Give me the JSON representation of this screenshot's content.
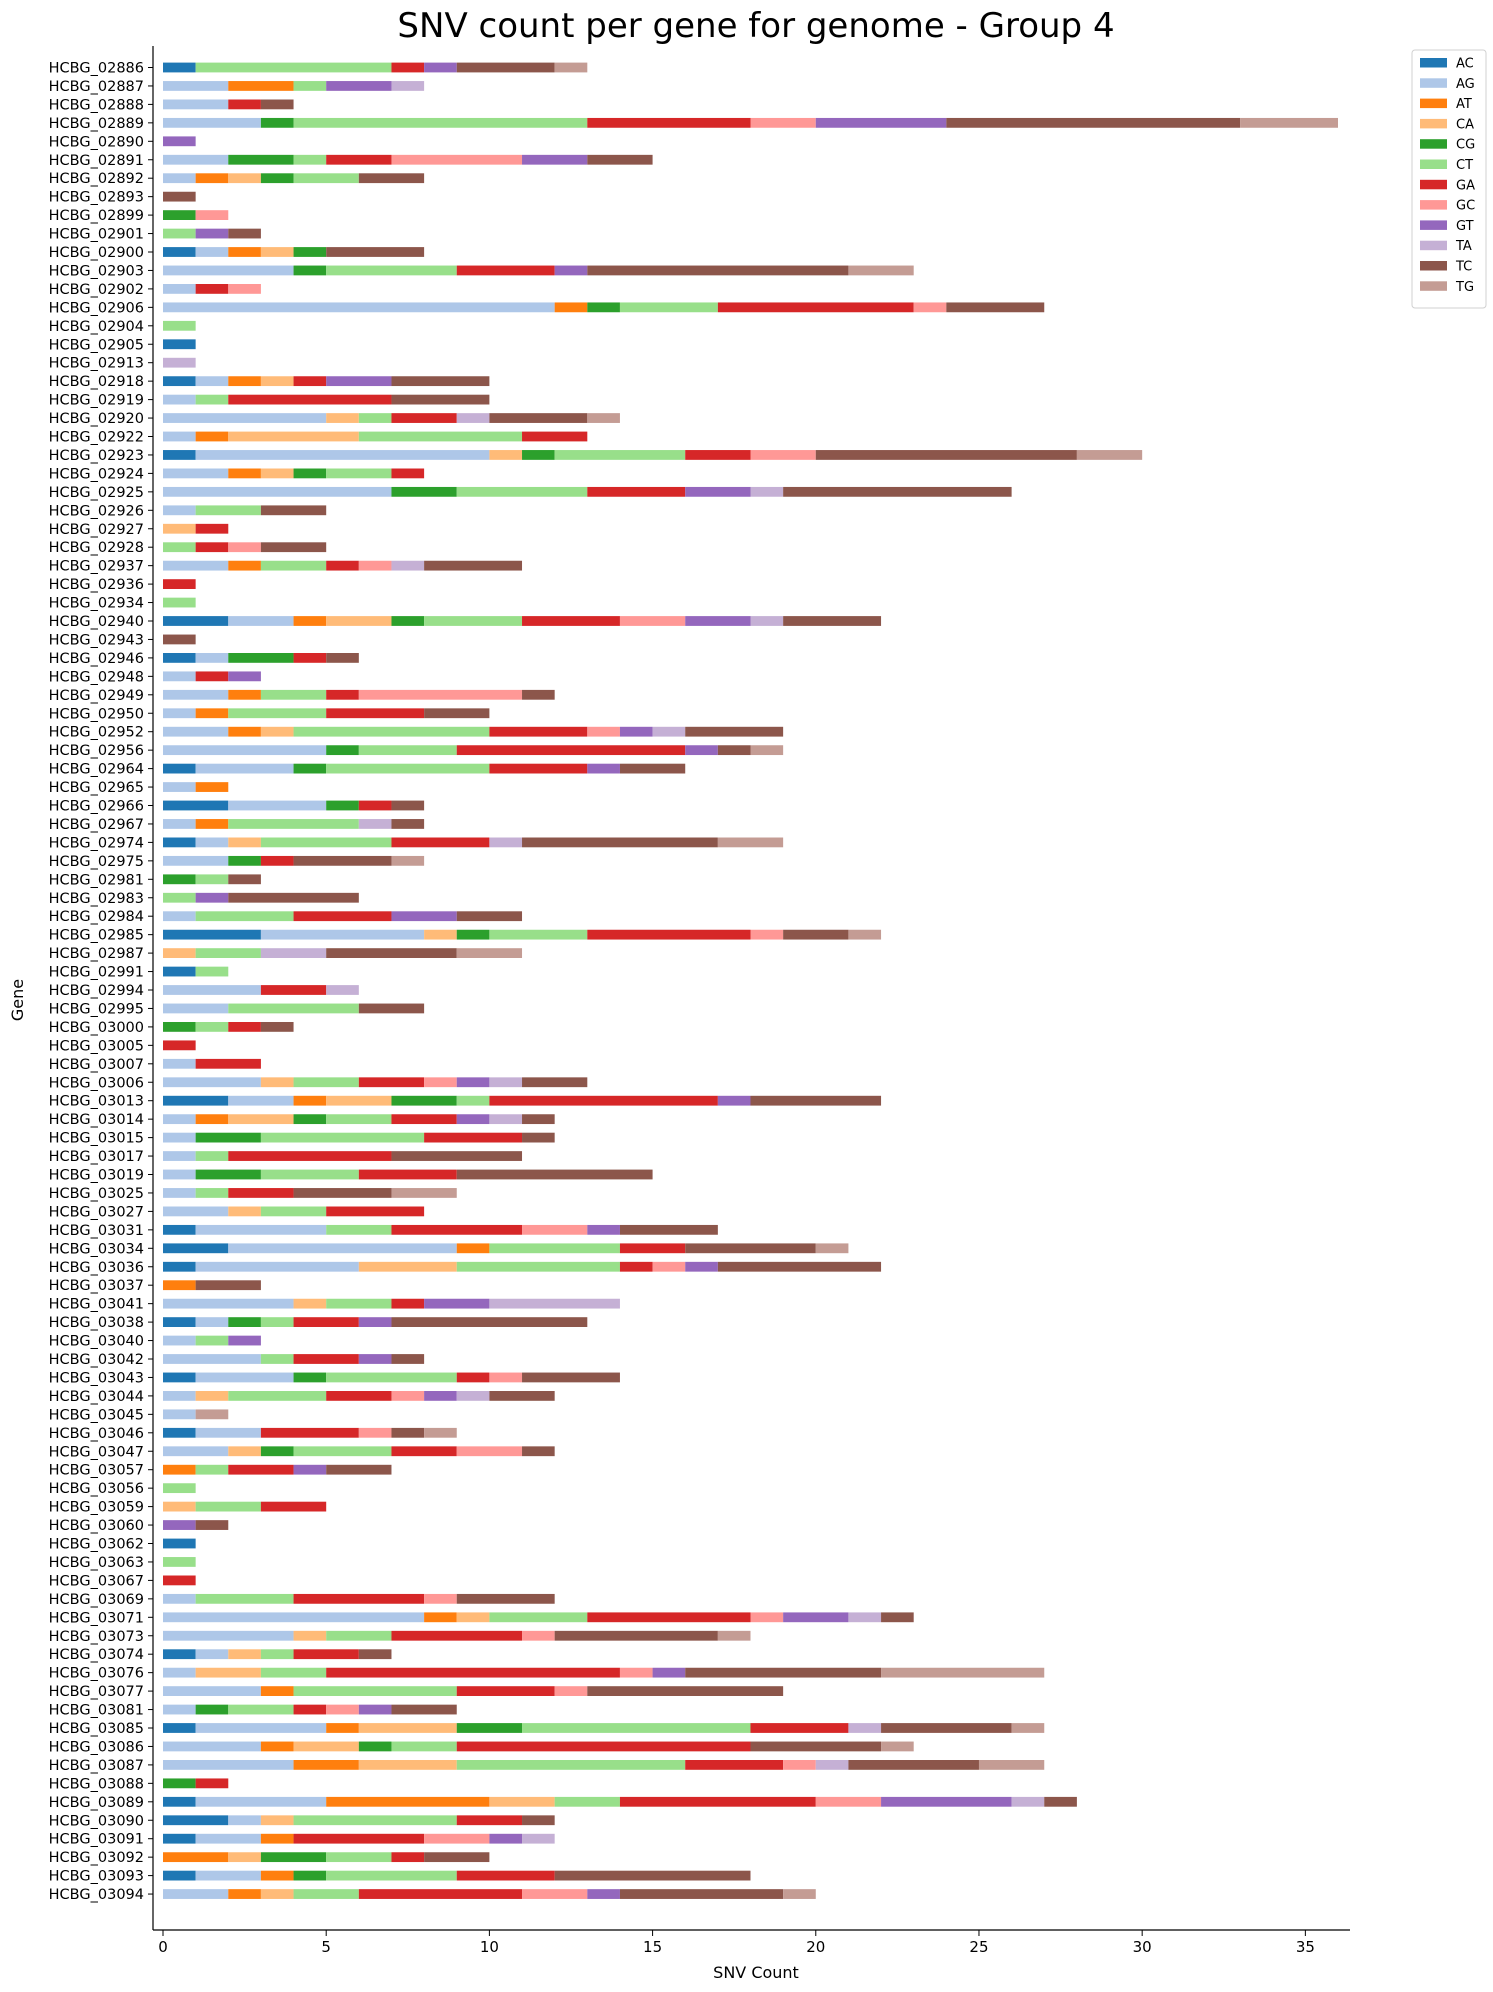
{
  "chart_data": {
    "type": "bar",
    "orientation": "horizontal",
    "stacked": true,
    "title": "SNV count per gene for genome - Group 4",
    "xlabel": "SNV Count",
    "ylabel": "Gene",
    "xlim": [
      0,
      36
    ],
    "xticks": [
      0,
      5,
      10,
      15,
      20,
      25,
      30,
      35
    ],
    "grid": false,
    "legend_position": "upper-right-outside",
    "series_names": [
      "AC",
      "AG",
      "AT",
      "CA",
      "CG",
      "CT",
      "GA",
      "GC",
      "GT",
      "TA",
      "TC",
      "TG"
    ],
    "colors": {
      "AC": "#1f77b4",
      "AG": "#aec7e8",
      "AT": "#ff7f0e",
      "CA": "#ffbb78",
      "CG": "#2ca02c",
      "CT": "#98df8a",
      "GA": "#d62728",
      "GC": "#ff9896",
      "GT": "#9467bd",
      "TA": "#c5b0d5",
      "TC": "#8c564b",
      "TG": "#c49c94"
    },
    "genes": [
      {
        "name": "HCBG_02886",
        "AC": 1,
        "CT": 6,
        "GA": 1,
        "GT": 1,
        "TC": 3,
        "TG": 1
      },
      {
        "name": "HCBG_02887",
        "AG": 2,
        "AT": 2,
        "CT": 1,
        "GT": 2,
        "TA": 1
      },
      {
        "name": "HCBG_02888",
        "AG": 2,
        "GA": 1,
        "TC": 1
      },
      {
        "name": "HCBG_02889",
        "AG": 3,
        "CG": 1,
        "CT": 9,
        "GA": 5,
        "GC": 2,
        "GT": 4,
        "TC": 9,
        "TG": 3
      },
      {
        "name": "HCBG_02890",
        "GT": 1
      },
      {
        "name": "HCBG_02891",
        "AG": 2,
        "CG": 2,
        "CT": 1,
        "GA": 2,
        "GC": 4,
        "GT": 2,
        "TC": 2
      },
      {
        "name": "HCBG_02892",
        "AG": 1,
        "AT": 1,
        "CA": 1,
        "CG": 1,
        "CT": 2,
        "TC": 2
      },
      {
        "name": "HCBG_02893",
        "TC": 1
      },
      {
        "name": "HCBG_02899",
        "CG": 1,
        "GC": 1
      },
      {
        "name": "HCBG_02901",
        "CT": 1,
        "GT": 1,
        "TC": 1
      },
      {
        "name": "HCBG_02900",
        "AC": 1,
        "AG": 1,
        "AT": 1,
        "CA": 1,
        "CG": 1,
        "TC": 3
      },
      {
        "name": "HCBG_02903",
        "AG": 4,
        "CG": 1,
        "CT": 4,
        "GA": 3,
        "GT": 1,
        "TC": 8,
        "TG": 2
      },
      {
        "name": "HCBG_02902",
        "AG": 1,
        "GA": 1,
        "GC": 1
      },
      {
        "name": "HCBG_02906",
        "AG": 12,
        "AT": 1,
        "CG": 1,
        "CT": 3,
        "GA": 6,
        "GC": 1,
        "TC": 3
      },
      {
        "name": "HCBG_02904",
        "CT": 1
      },
      {
        "name": "HCBG_02905",
        "AC": 1
      },
      {
        "name": "HCBG_02913",
        "TA": 1
      },
      {
        "name": "HCBG_02918",
        "AC": 1,
        "AG": 1,
        "AT": 1,
        "CA": 1,
        "GA": 1,
        "GT": 2,
        "TC": 3
      },
      {
        "name": "HCBG_02919",
        "AG": 1,
        "CT": 1,
        "GA": 5,
        "TC": 3
      },
      {
        "name": "HCBG_02920",
        "AG": 5,
        "CA": 1,
        "CT": 1,
        "GA": 2,
        "TA": 1,
        "TC": 3,
        "TG": 1
      },
      {
        "name": "HCBG_02922",
        "AG": 1,
        "AT": 1,
        "CA": 4,
        "CT": 5,
        "GA": 2
      },
      {
        "name": "HCBG_02923",
        "AC": 1,
        "AG": 9,
        "CA": 1,
        "CG": 1,
        "CT": 4,
        "GA": 2,
        "GC": 2,
        "TC": 8,
        "TG": 2
      },
      {
        "name": "HCBG_02924",
        "AG": 2,
        "AT": 1,
        "CA": 1,
        "CG": 1,
        "CT": 2,
        "GA": 1
      },
      {
        "name": "HCBG_02925",
        "AG": 7,
        "CG": 2,
        "CT": 4,
        "GA": 3,
        "GT": 2,
        "TA": 1,
        "TC": 7
      },
      {
        "name": "HCBG_02926",
        "AG": 1,
        "CT": 2,
        "TC": 2
      },
      {
        "name": "HCBG_02927",
        "CA": 1,
        "GA": 1
      },
      {
        "name": "HCBG_02928",
        "CT": 1,
        "GA": 1,
        "GC": 1,
        "TC": 2
      },
      {
        "name": "HCBG_02937",
        "AG": 2,
        "AT": 1,
        "CT": 2,
        "GA": 1,
        "GC": 1,
        "TA": 1,
        "TC": 3
      },
      {
        "name": "HCBG_02936",
        "GA": 1
      },
      {
        "name": "HCBG_02934",
        "CT": 1
      },
      {
        "name": "HCBG_02940",
        "AC": 2,
        "AG": 2,
        "AT": 1,
        "CA": 2,
        "CG": 1,
        "CT": 3,
        "GA": 3,
        "GC": 2,
        "GT": 2,
        "TA": 1,
        "TC": 3
      },
      {
        "name": "HCBG_02943",
        "TC": 1
      },
      {
        "name": "HCBG_02946",
        "AC": 1,
        "AG": 1,
        "CG": 2,
        "GA": 1,
        "TC": 1
      },
      {
        "name": "HCBG_02948",
        "AG": 1,
        "GA": 1,
        "GT": 1
      },
      {
        "name": "HCBG_02949",
        "AG": 2,
        "AT": 1,
        "CT": 2,
        "GA": 1,
        "GC": 5,
        "TC": 1
      },
      {
        "name": "HCBG_02950",
        "AG": 1,
        "AT": 1,
        "CT": 3,
        "GA": 3,
        "TC": 2
      },
      {
        "name": "HCBG_02952",
        "AG": 2,
        "AT": 1,
        "CA": 1,
        "CT": 6,
        "GA": 3,
        "GC": 1,
        "GT": 1,
        "TA": 1,
        "TC": 3
      },
      {
        "name": "HCBG_02956",
        "AG": 5,
        "CG": 1,
        "CT": 3,
        "GA": 7,
        "GT": 1,
        "TC": 1,
        "TG": 1
      },
      {
        "name": "HCBG_02964",
        "AC": 1,
        "AG": 3,
        "CG": 1,
        "CT": 5,
        "GA": 3,
        "GT": 1,
        "TC": 2
      },
      {
        "name": "HCBG_02965",
        "AG": 1,
        "AT": 1
      },
      {
        "name": "HCBG_02966",
        "AC": 2,
        "AG": 3,
        "CG": 1,
        "GA": 1,
        "TC": 1
      },
      {
        "name": "HCBG_02967",
        "AG": 1,
        "AT": 1,
        "CT": 4,
        "TA": 1,
        "TC": 1
      },
      {
        "name": "HCBG_02974",
        "AC": 1,
        "AG": 1,
        "CA": 1,
        "CT": 4,
        "GA": 3,
        "TA": 1,
        "TC": 6,
        "TG": 2
      },
      {
        "name": "HCBG_02975",
        "AG": 2,
        "CG": 1,
        "GA": 1,
        "TC": 3,
        "TG": 1
      },
      {
        "name": "HCBG_02981",
        "CG": 1,
        "CT": 1,
        "TC": 1
      },
      {
        "name": "HCBG_02983",
        "CT": 1,
        "GT": 1,
        "TC": 4
      },
      {
        "name": "HCBG_02984",
        "AG": 1,
        "CT": 3,
        "GA": 3,
        "GT": 2,
        "TC": 2
      },
      {
        "name": "HCBG_02985",
        "AC": 3,
        "AG": 5,
        "CA": 1,
        "CG": 1,
        "CT": 3,
        "GA": 5,
        "GC": 1,
        "TC": 2,
        "TG": 1
      },
      {
        "name": "HCBG_02987",
        "CA": 1,
        "CT": 2,
        "TA": 2,
        "TC": 4,
        "TG": 2
      },
      {
        "name": "HCBG_02991",
        "AC": 1,
        "CT": 1
      },
      {
        "name": "HCBG_02994",
        "AG": 3,
        "GA": 2,
        "TA": 1
      },
      {
        "name": "HCBG_02995",
        "AG": 2,
        "CT": 4,
        "TC": 2
      },
      {
        "name": "HCBG_03000",
        "CG": 1,
        "CT": 1,
        "GA": 1,
        "TC": 1
      },
      {
        "name": "HCBG_03005",
        "GA": 1
      },
      {
        "name": "HCBG_03007",
        "AG": 1,
        "GA": 2
      },
      {
        "name": "HCBG_03006",
        "AG": 3,
        "CA": 1,
        "CT": 2,
        "GA": 2,
        "GC": 1,
        "GT": 1,
        "TA": 1,
        "TC": 2
      },
      {
        "name": "HCBG_03013",
        "AC": 2,
        "AG": 2,
        "AT": 1,
        "CA": 2,
        "CG": 2,
        "CT": 1,
        "GA": 7,
        "GT": 1,
        "TC": 4
      },
      {
        "name": "HCBG_03014",
        "AG": 1,
        "AT": 1,
        "CA": 2,
        "CG": 1,
        "CT": 2,
        "GA": 2,
        "GT": 1,
        "TA": 1,
        "TC": 1
      },
      {
        "name": "HCBG_03015",
        "AG": 1,
        "CG": 2,
        "CT": 5,
        "GA": 3,
        "TC": 1
      },
      {
        "name": "HCBG_03017",
        "AG": 1,
        "CT": 1,
        "GA": 5,
        "TC": 4
      },
      {
        "name": "HCBG_03019",
        "AG": 1,
        "CG": 2,
        "CT": 3,
        "GA": 3,
        "TC": 6
      },
      {
        "name": "HCBG_03025",
        "AG": 1,
        "CT": 1,
        "GA": 2,
        "TC": 3,
        "TG": 2
      },
      {
        "name": "HCBG_03027",
        "AG": 2,
        "CA": 1,
        "CT": 2,
        "GA": 3
      },
      {
        "name": "HCBG_03031",
        "AC": 1,
        "AG": 4,
        "CT": 2,
        "GA": 4,
        "GC": 2,
        "GT": 1,
        "TC": 3
      },
      {
        "name": "HCBG_03034",
        "AC": 2,
        "AG": 7,
        "AT": 1,
        "CT": 4,
        "GA": 2,
        "TC": 4,
        "TG": 1
      },
      {
        "name": "HCBG_03036",
        "AC": 1,
        "AG": 5,
        "CA": 3,
        "CT": 5,
        "GA": 1,
        "GC": 1,
        "GT": 1,
        "TC": 5
      },
      {
        "name": "HCBG_03037",
        "AT": 1,
        "TC": 2
      },
      {
        "name": "HCBG_03041",
        "AG": 4,
        "CA": 1,
        "CT": 2,
        "GA": 1,
        "GT": 2,
        "TA": 4
      },
      {
        "name": "HCBG_03038",
        "AC": 1,
        "AG": 1,
        "CG": 1,
        "CT": 1,
        "GA": 2,
        "GT": 1,
        "TC": 6
      },
      {
        "name": "HCBG_03040",
        "AG": 1,
        "CT": 1,
        "GT": 1
      },
      {
        "name": "HCBG_03042",
        "AG": 3,
        "CT": 1,
        "GA": 2,
        "GT": 1,
        "TC": 1
      },
      {
        "name": "HCBG_03043",
        "AC": 1,
        "AG": 3,
        "CG": 1,
        "CT": 4,
        "GA": 1,
        "GC": 1,
        "TC": 3
      },
      {
        "name": "HCBG_03044",
        "AG": 1,
        "CA": 1,
        "CT": 3,
        "GA": 2,
        "GC": 1,
        "GT": 1,
        "TA": 1,
        "TC": 2
      },
      {
        "name": "HCBG_03045",
        "AG": 1,
        "TG": 1
      },
      {
        "name": "HCBG_03046",
        "AC": 1,
        "AG": 2,
        "GA": 3,
        "GC": 1,
        "TC": 1,
        "TG": 1
      },
      {
        "name": "HCBG_03047",
        "AG": 2,
        "CA": 1,
        "CG": 1,
        "CT": 3,
        "GA": 2,
        "GC": 2,
        "TC": 1
      },
      {
        "name": "HCBG_03057",
        "AT": 1,
        "CT": 1,
        "GA": 2,
        "GT": 1,
        "TC": 2
      },
      {
        "name": "HCBG_03056",
        "CT": 1
      },
      {
        "name": "HCBG_03059",
        "CA": 1,
        "CT": 2,
        "GA": 2
      },
      {
        "name": "HCBG_03060",
        "GT": 1,
        "TC": 1
      },
      {
        "name": "HCBG_03062",
        "AC": 1
      },
      {
        "name": "HCBG_03063",
        "CT": 1
      },
      {
        "name": "HCBG_03067",
        "GA": 1
      },
      {
        "name": "HCBG_03069",
        "AG": 1,
        "CT": 3,
        "GA": 4,
        "GC": 1,
        "TC": 3
      },
      {
        "name": "HCBG_03071",
        "AG": 8,
        "AT": 1,
        "CA": 1,
        "CT": 3,
        "GA": 5,
        "GC": 1,
        "GT": 2,
        "TA": 1,
        "TC": 1
      },
      {
        "name": "HCBG_03073",
        "AG": 4,
        "CA": 1,
        "CT": 2,
        "GA": 4,
        "GC": 1,
        "TC": 5,
        "TG": 1
      },
      {
        "name": "HCBG_03074",
        "AC": 1,
        "AG": 1,
        "CA": 1,
        "CT": 1,
        "GA": 2,
        "TC": 1
      },
      {
        "name": "HCBG_03076",
        "AG": 1,
        "CA": 2,
        "CT": 2,
        "GA": 9,
        "GC": 1,
        "GT": 1,
        "TC": 6,
        "TG": 5
      },
      {
        "name": "HCBG_03077",
        "AG": 3,
        "AT": 1,
        "CT": 5,
        "GA": 3,
        "GC": 1,
        "TC": 6
      },
      {
        "name": "HCBG_03081",
        "AG": 1,
        "CG": 1,
        "CT": 2,
        "GA": 1,
        "GC": 1,
        "GT": 1,
        "TC": 2
      },
      {
        "name": "HCBG_03085",
        "AC": 1,
        "AG": 4,
        "AT": 1,
        "CA": 3,
        "CG": 2,
        "CT": 7,
        "GA": 3,
        "TA": 1,
        "TC": 4,
        "TG": 1
      },
      {
        "name": "HCBG_03086",
        "AG": 3,
        "AT": 1,
        "CA": 2,
        "CG": 1,
        "CT": 2,
        "GA": 9,
        "TC": 4,
        "TG": 1
      },
      {
        "name": "HCBG_03087",
        "AG": 4,
        "AT": 2,
        "CA": 3,
        "CT": 7,
        "GA": 3,
        "GC": 1,
        "TA": 1,
        "TC": 4,
        "TG": 2
      },
      {
        "name": "HCBG_03088",
        "CG": 1,
        "GA": 1
      },
      {
        "name": "HCBG_03089",
        "AC": 1,
        "AG": 4,
        "AT": 5,
        "CA": 2,
        "CT": 2,
        "GA": 6,
        "GC": 2,
        "GT": 4,
        "TA": 1,
        "TC": 1
      },
      {
        "name": "HCBG_03090",
        "AC": 2,
        "AG": 1,
        "CA": 1,
        "CT": 5,
        "GA": 2,
        "TC": 1
      },
      {
        "name": "HCBG_03091",
        "AC": 1,
        "AG": 2,
        "AT": 1,
        "GA": 4,
        "GC": 2,
        "GT": 1,
        "TA": 1
      },
      {
        "name": "HCBG_03092",
        "AT": 2,
        "CA": 1,
        "CG": 2,
        "CT": 2,
        "GA": 1,
        "TC": 2
      },
      {
        "name": "HCBG_03093",
        "AC": 1,
        "AG": 2,
        "AT": 1,
        "CG": 1,
        "CT": 4,
        "GA": 3,
        "TC": 6
      },
      {
        "name": "HCBG_03094",
        "AG": 2,
        "AT": 1,
        "CA": 1,
        "CT": 2,
        "GA": 5,
        "GC": 2,
        "GT": 1,
        "TC": 5,
        "TG": 1
      }
    ]
  }
}
